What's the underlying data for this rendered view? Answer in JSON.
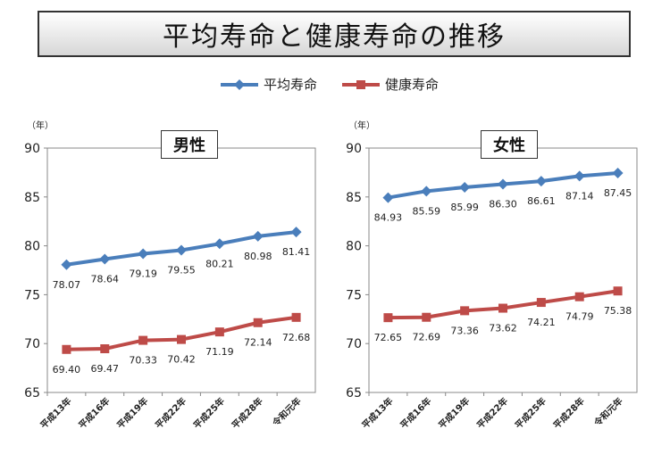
{
  "page_title": "平均寿命と健康寿命の推移",
  "legend": [
    {
      "label": "平均寿命",
      "color": "#4a7ebb"
    },
    {
      "label": "健康寿命",
      "color": "#be4b48"
    }
  ],
  "chart_data": [
    {
      "type": "line",
      "title": "男性",
      "ylabel": "（年）",
      "categories": [
        "平成13年",
        "平成16年",
        "平成19年",
        "平成22年",
        "平成25年",
        "平成28年",
        "令和元年"
      ],
      "ylim": [
        65,
        90
      ],
      "yticks": [
        65,
        70,
        75,
        80,
        85,
        90
      ],
      "grid": false,
      "series": [
        {
          "name": "平均寿命",
          "color": "#4a7ebb",
          "marker": "diamond",
          "values": [
            78.07,
            78.64,
            79.19,
            79.55,
            80.21,
            80.98,
            81.41
          ],
          "labels": [
            "78.07",
            "78.64",
            "79.19",
            "79.55",
            "80.21",
            "80.98",
            "81.41"
          ]
        },
        {
          "name": "健康寿命",
          "color": "#be4b48",
          "marker": "square",
          "values": [
            69.4,
            69.47,
            70.33,
            70.42,
            71.19,
            72.14,
            72.68
          ],
          "labels": [
            "69.40",
            "69.47",
            "70.33",
            "70.42",
            "71.19",
            "72.14",
            "72.68"
          ]
        }
      ]
    },
    {
      "type": "line",
      "title": "女性",
      "ylabel": "（年）",
      "categories": [
        "平成13年",
        "平成16年",
        "平成19年",
        "平成22年",
        "平成25年",
        "平成28年",
        "令和元年"
      ],
      "ylim": [
        65,
        90
      ],
      "yticks": [
        65,
        70,
        75,
        80,
        85,
        90
      ],
      "grid": false,
      "series": [
        {
          "name": "平均寿命",
          "color": "#4a7ebb",
          "marker": "diamond",
          "values": [
            84.93,
            85.59,
            85.99,
            86.3,
            86.61,
            87.14,
            87.45
          ],
          "labels": [
            "84.93",
            "85.59",
            "85.99",
            "86.30",
            "86.61",
            "87.14",
            "87.45"
          ]
        },
        {
          "name": "健康寿命",
          "color": "#be4b48",
          "marker": "square",
          "values": [
            72.65,
            72.69,
            73.36,
            73.62,
            74.21,
            74.79,
            75.38
          ],
          "labels": [
            "72.65",
            "72.69",
            "73.36",
            "73.62",
            "74.21",
            "74.79",
            "75.38"
          ]
        }
      ]
    }
  ]
}
